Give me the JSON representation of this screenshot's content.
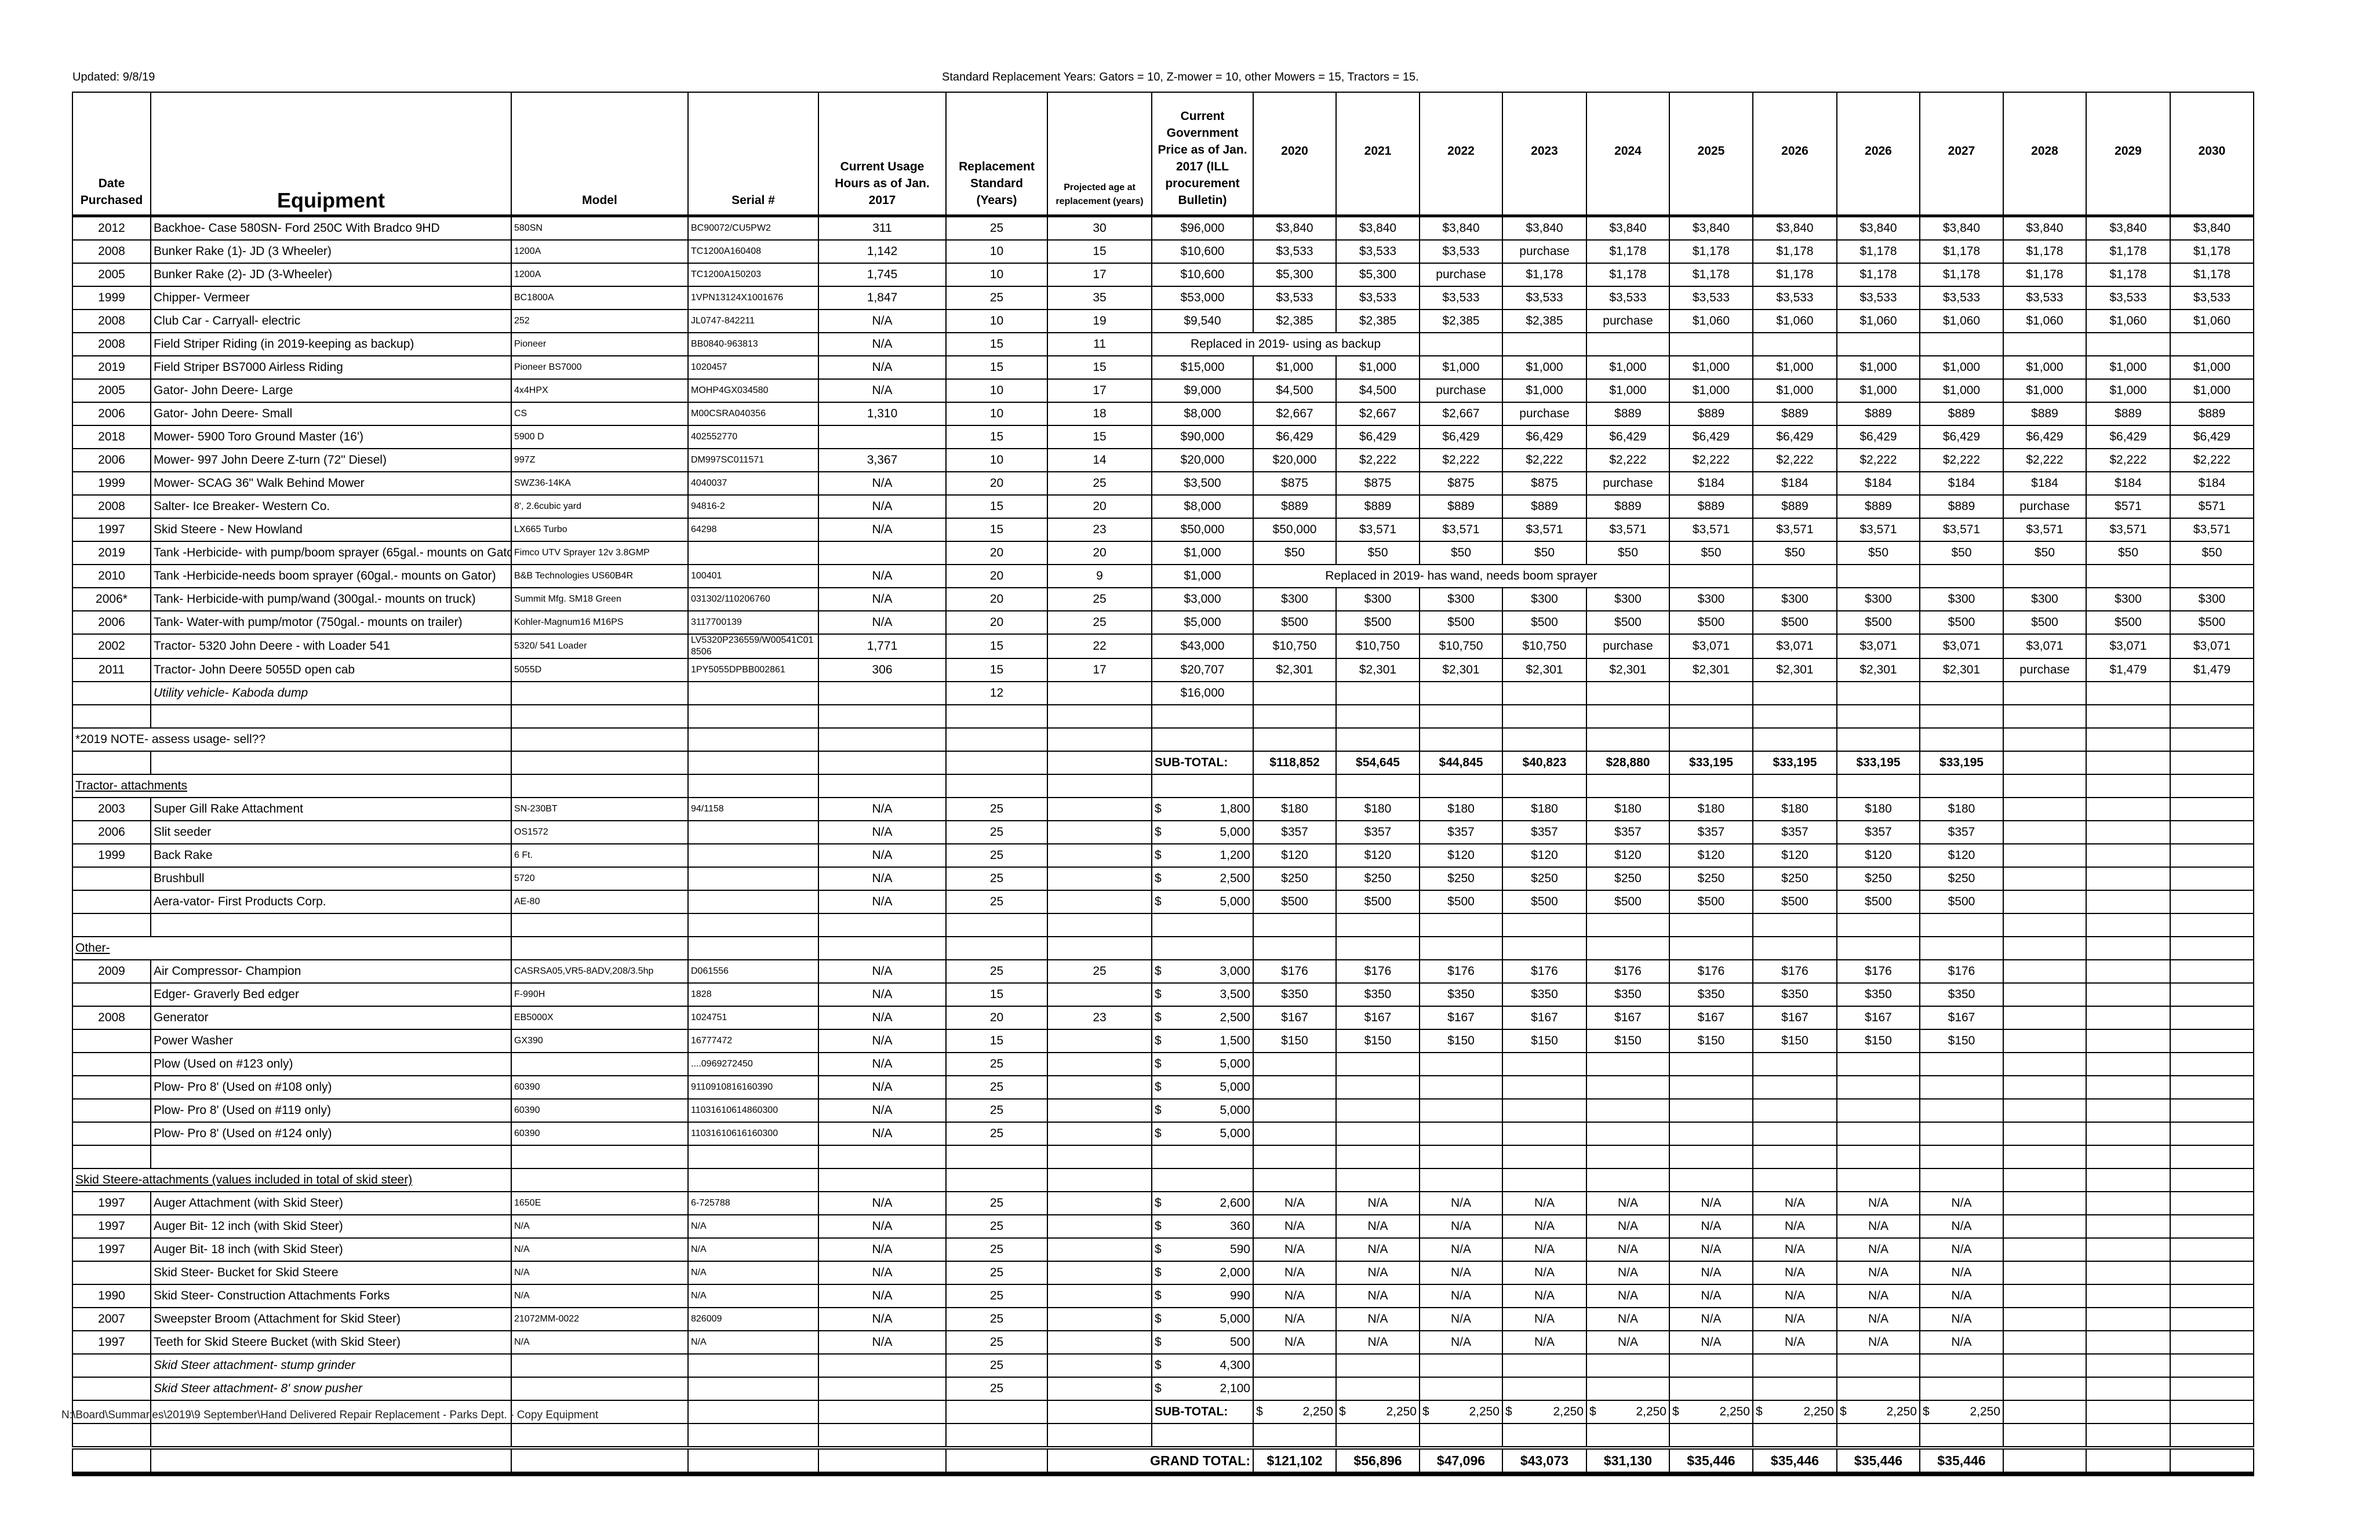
{
  "updated": "Updated: 9/8/19",
  "standard_note": "Standard Replacement Years: Gators = 10, Z-mower = 10, other Mowers = 15, Tractors = 15.",
  "headers": [
    "Date Purchased",
    "Equipment",
    "Model",
    "Serial #",
    "Current Usage Hours as of Jan. 2017",
    "Replacement Standard (Years)",
    "Projected age at replacement (years)",
    "Current Government Price as of Jan. 2017 (ILL procurement Bulletin)",
    "2020",
    "2021",
    "2022",
    "2023",
    "2024",
    "2025",
    "2026",
    "2026",
    "2027",
    "2028",
    "2029",
    "2030"
  ],
  "rows": [
    {
      "type": "item",
      "cells": [
        "2012",
        "Backhoe- Case 580SN- Ford 250C With Bradco 9HD",
        "580SN",
        "BC90072/CU5PW2",
        "311",
        "25",
        "30",
        "$96,000",
        "$3,840",
        "$3,840",
        "$3,840",
        "$3,840",
        "$3,840",
        "$3,840",
        "$3,840",
        "$3,840",
        "$3,840",
        "$3,840",
        "$3,840",
        "$3,840"
      ]
    },
    {
      "type": "item",
      "cells": [
        "2008",
        "Bunker Rake (1)- JD (3 Wheeler)",
        "1200A",
        "TC1200A160408",
        "1,142",
        "10",
        "15",
        "$10,600",
        "$3,533",
        "$3,533",
        "$3,533",
        "purchase",
        "$1,178",
        "$1,178",
        "$1,178",
        "$1,178",
        "$1,178",
        "$1,178",
        "$1,178",
        "$1,178"
      ]
    },
    {
      "type": "item",
      "cells": [
        "2005",
        "Bunker Rake (2)- JD (3-Wheeler)",
        "1200A",
        "TC1200A150203",
        "1,745",
        "10",
        "17",
        "$10,600",
        "$5,300",
        "$5,300",
        "purchase",
        "$1,178",
        "$1,178",
        "$1,178",
        "$1,178",
        "$1,178",
        "$1,178",
        "$1,178",
        "$1,178",
        "$1,178"
      ]
    },
    {
      "type": "item",
      "cells": [
        "1999",
        "Chipper- Vermeer",
        "BC1800A",
        "1VPN13124X1001676",
        "1,847",
        "25",
        "35",
        "$53,000",
        "$3,533",
        "$3,533",
        "$3,533",
        "$3,533",
        "$3,533",
        "$3,533",
        "$3,533",
        "$3,533",
        "$3,533",
        "$3,533",
        "$3,533",
        "$3,533"
      ]
    },
    {
      "type": "item",
      "cells": [
        "2008",
        "Club Car - Carryall- electric",
        "252",
        "JL0747-842211",
        "N/A",
        "10",
        "19",
        "$9,540",
        "$2,385",
        "$2,385",
        "$2,385",
        "$2,385",
        "purchase",
        "$1,060",
        "$1,060",
        "$1,060",
        "$1,060",
        "$1,060",
        "$1,060",
        "$1,060"
      ]
    },
    {
      "type": "item",
      "cells": [
        "2008",
        "Field Striper Riding (in 2019-keeping as backup)",
        "Pioneer",
        "BB0840-963813",
        "N/A",
        "15",
        "11"
      ],
      "note": {
        "text": "Replaced in 2019- using as backup",
        "start": 7,
        "span": 3
      }
    },
    {
      "type": "item",
      "cells": [
        "2019",
        "Field Striper BS7000 Airless Riding",
        "Pioneer BS7000",
        "1020457",
        "N/A",
        "15",
        "15",
        "$15,000",
        "$1,000",
        "$1,000",
        "$1,000",
        "$1,000",
        "$1,000",
        "$1,000",
        "$1,000",
        "$1,000",
        "$1,000",
        "$1,000",
        "$1,000",
        "$1,000"
      ]
    },
    {
      "type": "item",
      "cells": [
        "2005",
        "Gator- John Deere- Large",
        "4x4HPX",
        "MOHP4GX034580",
        "N/A",
        "10",
        "17",
        "$9,000",
        "$4,500",
        "$4,500",
        "purchase",
        "$1,000",
        "$1,000",
        "$1,000",
        "$1,000",
        "$1,000",
        "$1,000",
        "$1,000",
        "$1,000",
        "$1,000"
      ]
    },
    {
      "type": "item",
      "cells": [
        "2006",
        "Gator- John Deere- Small",
        "CS",
        "M00CSRA040356",
        "1,310",
        "10",
        "18",
        "$8,000",
        "$2,667",
        "$2,667",
        "$2,667",
        "purchase",
        "$889",
        "$889",
        "$889",
        "$889",
        "$889",
        "$889",
        "$889",
        "$889"
      ]
    },
    {
      "type": "item",
      "cells": [
        "2018",
        "Mower- 5900 Toro Ground Master (16')",
        "5900 D",
        "402552770",
        "",
        "15",
        "15",
        "$90,000",
        "$6,429",
        "$6,429",
        "$6,429",
        "$6,429",
        "$6,429",
        "$6,429",
        "$6,429",
        "$6,429",
        "$6,429",
        "$6,429",
        "$6,429",
        "$6,429"
      ]
    },
    {
      "type": "item",
      "cells": [
        "2006",
        "Mower- 997 John Deere Z-turn (72\" Diesel)",
        "997Z",
        "DM997SC011571",
        "3,367",
        "10",
        "14",
        "$20,000",
        "$20,000",
        "$2,222",
        "$2,222",
        "$2,222",
        "$2,222",
        "$2,222",
        "$2,222",
        "$2,222",
        "$2,222",
        "$2,222",
        "$2,222",
        "$2,222"
      ]
    },
    {
      "type": "item",
      "cells": [
        "1999",
        "Mower- SCAG 36\" Walk Behind Mower",
        "SWZ36-14KA",
        "4040037",
        "N/A",
        "20",
        "25",
        "$3,500",
        "$875",
        "$875",
        "$875",
        "$875",
        "purchase",
        "$184",
        "$184",
        "$184",
        "$184",
        "$184",
        "$184",
        "$184"
      ]
    },
    {
      "type": "item",
      "cells": [
        "2008",
        "Salter- Ice Breaker- Western Co.",
        "8', 2.6cubic yard",
        "94816-2",
        "N/A",
        "15",
        "20",
        "$8,000",
        "$889",
        "$889",
        "$889",
        "$889",
        "$889",
        "$889",
        "$889",
        "$889",
        "$889",
        "purchase",
        "$571",
        "$571"
      ]
    },
    {
      "type": "item",
      "cells": [
        "1997",
        "Skid Steere - New Howland",
        "LX665 Turbo",
        "64298",
        "N/A",
        "15",
        "23",
        "$50,000",
        "$50,000",
        "$3,571",
        "$3,571",
        "$3,571",
        "$3,571",
        "$3,571",
        "$3,571",
        "$3,571",
        "$3,571",
        "$3,571",
        "$3,571",
        "$3,571"
      ]
    },
    {
      "type": "item",
      "cells": [
        "2019",
        "Tank -Herbicide- with pump/boom sprayer (65gal.- mounts on Gato",
        "Fimco  UTV Sprayer 12v 3.8GMP",
        "",
        "",
        "20",
        "20",
        "$1,000",
        "$50",
        "$50",
        "$50",
        "$50",
        "$50",
        "$50",
        "$50",
        "$50",
        "$50",
        "$50",
        "$50",
        "$50"
      ]
    },
    {
      "type": "item",
      "cells": [
        "2010",
        "Tank -Herbicide-needs boom sprayer (60gal.- mounts on Gator)",
        "B&B Technologies US60B4R",
        "100401",
        "N/A",
        "20",
        "9",
        "$1,000"
      ],
      "note": {
        "text": "Replaced in 2019- has wand, needs boom sprayer",
        "start": 8,
        "span": 5
      }
    },
    {
      "type": "item",
      "cells": [
        "2006*",
        "Tank- Herbicide-with pump/wand (300gal.- mounts on truck)",
        "Summit Mfg. SM18 Green",
        "031302/110206760",
        "N/A",
        "20",
        "25",
        "$3,000",
        "$300",
        "$300",
        "$300",
        "$300",
        "$300",
        "$300",
        "$300",
        "$300",
        "$300",
        "$300",
        "$300",
        "$300"
      ]
    },
    {
      "type": "item",
      "cells": [
        "2006",
        "Tank- Water-with pump/motor (750gal.- mounts on trailer)",
        "Kohler-Magnum16  M16PS",
        "3117700139",
        "N/A",
        "20",
        "25",
        "$5,000",
        "$500",
        "$500",
        "$500",
        "$500",
        "$500",
        "$500",
        "$500",
        "$500",
        "$500",
        "$500",
        "$500",
        "$500"
      ]
    },
    {
      "type": "item",
      "cells": [
        "2002",
        "Tractor- 5320 John Deere - with Loader 541",
        "5320/ 541 Loader",
        "LV5320P236559/W00541C018506",
        "1,771",
        "15",
        "22",
        "$43,000",
        "$10,750",
        "$10,750",
        "$10,750",
        "$10,750",
        "purchase",
        "$3,071",
        "$3,071",
        "$3,071",
        "$3,071",
        "$3,071",
        "$3,071",
        "$3,071"
      ]
    },
    {
      "type": "item",
      "cells": [
        "2011",
        "Tractor- John Deere 5055D open cab",
        "5055D",
        "1PY5055DPBB002861",
        "306",
        "15",
        "17",
        "$20,707",
        "$2,301",
        "$2,301",
        "$2,301",
        "$2,301",
        "$2,301",
        "$2,301",
        "$2,301",
        "$2,301",
        "$2,301",
        "purchase",
        "$1,479",
        "$1,479"
      ]
    },
    {
      "type": "item",
      "italic": true,
      "cells": [
        "",
        "Utility vehicle- Kaboda dump",
        "",
        "",
        "",
        "12",
        "",
        "$16,000"
      ]
    },
    {
      "type": "blank"
    },
    {
      "type": "section",
      "text": "*2019 NOTE- assess usage- sell??",
      "underline": false
    },
    {
      "type": "subtotal",
      "bold": true,
      "label": "SUB-TOTAL:",
      "values": [
        "$118,852",
        "$54,645",
        "$44,845",
        "$40,823",
        "$28,880",
        "$33,195",
        "$33,195",
        "$33,195",
        "$33,195"
      ]
    },
    {
      "type": "section",
      "text": "Tractor- attachments",
      "underline": true
    },
    {
      "type": "item",
      "cells": [
        "2003",
        "Super Gill Rake Attachment",
        "SN-230BT",
        "94/1158",
        "N/A",
        "25",
        "",
        "$ 1,800",
        "$180",
        "$180",
        "$180",
        "$180",
        "$180",
        "$180",
        "$180",
        "$180",
        "$180"
      ]
    },
    {
      "type": "item",
      "cells": [
        "2006",
        "Slit seeder",
        "OS1572",
        "",
        "N/A",
        "25",
        "",
        "$ 5,000",
        "$357",
        "$357",
        "$357",
        "$357",
        "$357",
        "$357",
        "$357",
        "$357",
        "$357"
      ]
    },
    {
      "type": "item",
      "cells": [
        "1999",
        "Back Rake",
        "6 Ft.",
        "",
        "N/A",
        "25",
        "",
        "$ 1,200",
        "$120",
        "$120",
        "$120",
        "$120",
        "$120",
        "$120",
        "$120",
        "$120",
        "$120"
      ]
    },
    {
      "type": "item",
      "cells": [
        "",
        "Brushbull",
        "5720",
        "",
        "N/A",
        "25",
        "",
        "$ 2,500",
        "$250",
        "$250",
        "$250",
        "$250",
        "$250",
        "$250",
        "$250",
        "$250",
        "$250"
      ]
    },
    {
      "type": "item",
      "cells": [
        "",
        "Aera-vator- First Products Corp.",
        "AE-80",
        "",
        "N/A",
        "25",
        "",
        "$ 5,000",
        "$500",
        "$500",
        "$500",
        "$500",
        "$500",
        "$500",
        "$500",
        "$500",
        "$500"
      ]
    },
    {
      "type": "blank"
    },
    {
      "type": "section",
      "text": "Other-",
      "underline": true
    },
    {
      "type": "item",
      "cells": [
        "2009",
        "Air Compressor- Champion",
        "CASRSA05,VR5-8ADV,208/3.5hp",
        "D061556",
        "N/A",
        "25",
        "25",
        "$ 3,000",
        "$176",
        "$176",
        "$176",
        "$176",
        "$176",
        "$176",
        "$176",
        "$176",
        "$176"
      ]
    },
    {
      "type": "item",
      "cells": [
        "",
        "Edger- Graverly Bed edger",
        "F-990H",
        "1828",
        "N/A",
        "15",
        "",
        "$ 3,500",
        "$350",
        "$350",
        "$350",
        "$350",
        "$350",
        "$350",
        "$350",
        "$350",
        "$350"
      ]
    },
    {
      "type": "item",
      "cells": [
        "2008",
        "Generator",
        "EB5000X",
        "1024751",
        "N/A",
        "20",
        "23",
        "$ 2,500",
        "$167",
        "$167",
        "$167",
        "$167",
        "$167",
        "$167",
        "$167",
        "$167",
        "$167"
      ]
    },
    {
      "type": "item",
      "cells": [
        "",
        "Power Washer",
        "GX390",
        "16777472",
        "N/A",
        "15",
        "",
        "$ 1,500",
        "$150",
        "$150",
        "$150",
        "$150",
        "$150",
        "$150",
        "$150",
        "$150",
        "$150"
      ]
    },
    {
      "type": "item",
      "cells": [
        "",
        "Plow (Used on #123 only)",
        "",
        "....0969272450",
        "N/A",
        "25",
        "",
        "$ 5,000"
      ]
    },
    {
      "type": "item",
      "cells": [
        "",
        "Plow- Pro 8' (Used on #108 only)",
        "60390",
        "9110910816160390",
        "N/A",
        "25",
        "",
        "$ 5,000"
      ]
    },
    {
      "type": "item",
      "cells": [
        "",
        "Plow- Pro 8' (Used on #119 only)",
        "60390",
        "11031610614860300",
        "N/A",
        "25",
        "",
        "$ 5,000"
      ]
    },
    {
      "type": "item",
      "cells": [
        "",
        "Plow- Pro 8' (Used on #124 only)",
        "60390",
        "11031610616160300",
        "N/A",
        "25",
        "",
        "$ 5,000"
      ]
    },
    {
      "type": "blank"
    },
    {
      "type": "section",
      "text": "Skid Steere-attachments (values included in total of skid steer)",
      "underline": true
    },
    {
      "type": "item",
      "cells": [
        "1997",
        "Auger Attachment (with Skid Steer)",
        "1650E",
        "6-725788",
        "N/A",
        "25",
        "",
        "$ 2,600",
        "N/A",
        "N/A",
        "N/A",
        "N/A",
        "N/A",
        "N/A",
        "N/A",
        "N/A",
        "N/A"
      ]
    },
    {
      "type": "item",
      "cells": [
        "1997",
        "Auger Bit- 12 inch (with Skid Steer)",
        "N/A",
        "N/A",
        "N/A",
        "25",
        "",
        "$ 360",
        "N/A",
        "N/A",
        "N/A",
        "N/A",
        "N/A",
        "N/A",
        "N/A",
        "N/A",
        "N/A"
      ]
    },
    {
      "type": "item",
      "cells": [
        "1997",
        "Auger Bit- 18 inch (with Skid Steer)",
        "N/A",
        "N/A",
        "N/A",
        "25",
        "",
        "$ 590",
        "N/A",
        "N/A",
        "N/A",
        "N/A",
        "N/A",
        "N/A",
        "N/A",
        "N/A",
        "N/A"
      ]
    },
    {
      "type": "item",
      "cells": [
        "",
        "Skid Steer- Bucket for Skid Steere",
        "N/A",
        "N/A",
        "N/A",
        "25",
        "",
        "$ 2,000",
        "N/A",
        "N/A",
        "N/A",
        "N/A",
        "N/A",
        "N/A",
        "N/A",
        "N/A",
        "N/A"
      ]
    },
    {
      "type": "item",
      "cells": [
        "1990",
        "Skid Steer- Construction Attachments Forks",
        "N/A",
        "N/A",
        "N/A",
        "25",
        "",
        "$ 990",
        "N/A",
        "N/A",
        "N/A",
        "N/A",
        "N/A",
        "N/A",
        "N/A",
        "N/A",
        "N/A"
      ]
    },
    {
      "type": "item",
      "cells": [
        "2007",
        "Sweepster Broom (Attachment for Skid Steer)",
        "21072MM-0022",
        "826009",
        "N/A",
        "25",
        "",
        "$ 5,000",
        "N/A",
        "N/A",
        "N/A",
        "N/A",
        "N/A",
        "N/A",
        "N/A",
        "N/A",
        "N/A"
      ]
    },
    {
      "type": "item",
      "cells": [
        "1997",
        "Teeth for Skid Steere Bucket (with Skid Steer)",
        "N/A",
        "N/A",
        "N/A",
        "25",
        "",
        "$ 500",
        "N/A",
        "N/A",
        "N/A",
        "N/A",
        "N/A",
        "N/A",
        "N/A",
        "N/A",
        "N/A"
      ]
    },
    {
      "type": "item",
      "italic": true,
      "cells": [
        "",
        "Skid Steer attachment- stump grinder",
        "",
        "",
        "",
        "25",
        "",
        "$ 4,300"
      ]
    },
    {
      "type": "item",
      "italic": true,
      "cells": [
        "",
        "Skid Steer attachment- 8' snow pusher",
        "",
        "",
        "",
        "25",
        "",
        "$ 2,100"
      ]
    },
    {
      "type": "subtotal",
      "bold": false,
      "label": "SUB-TOTAL:",
      "values": [
        "$ 2,250",
        "$ 2,250",
        "$ 2,250",
        "$ 2,250",
        "$ 2,250",
        "$ 2,250",
        "$ 2,250",
        "$ 2,250",
        "$ 2,250"
      ],
      "footnote": "N:\\Board\\Summaries\\2019\\9 September\\Hand Delivered Repair  Replacement - Parks Dept. - Copy Equipment"
    },
    {
      "type": "blank"
    },
    {
      "type": "grand",
      "label": "GRAND TOTAL:",
      "values": [
        "$121,102",
        "$56,896",
        "$47,096",
        "$43,073",
        "$31,130",
        "$35,446",
        "$35,446",
        "$35,446",
        "$35,446"
      ]
    }
  ]
}
